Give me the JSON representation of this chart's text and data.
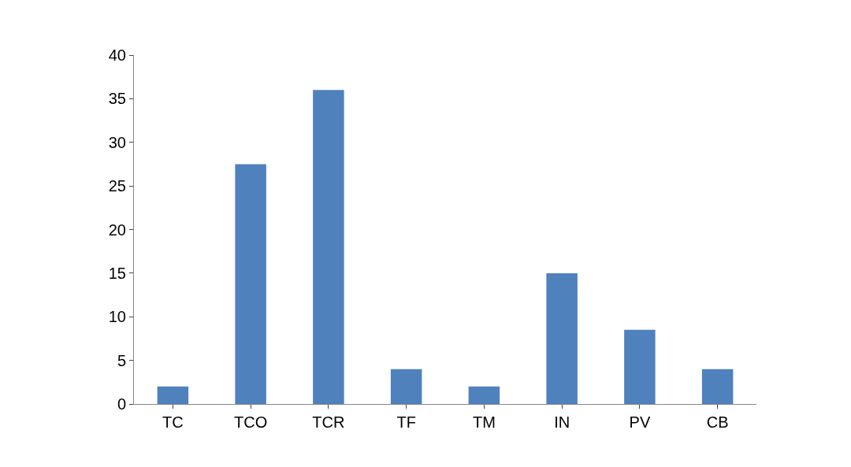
{
  "chart_data": {
    "type": "bar",
    "categories": [
      "TC",
      "TCO",
      "TCR",
      "TF",
      "TM",
      "IN",
      "PV",
      "CB"
    ],
    "values": [
      2,
      27.5,
      36,
      4,
      2,
      15,
      8.5,
      4
    ],
    "color": "#4f81bd",
    "ylim": [
      0,
      40
    ],
    "yticks": [
      0,
      5,
      10,
      15,
      20,
      25,
      30,
      35,
      40
    ]
  }
}
